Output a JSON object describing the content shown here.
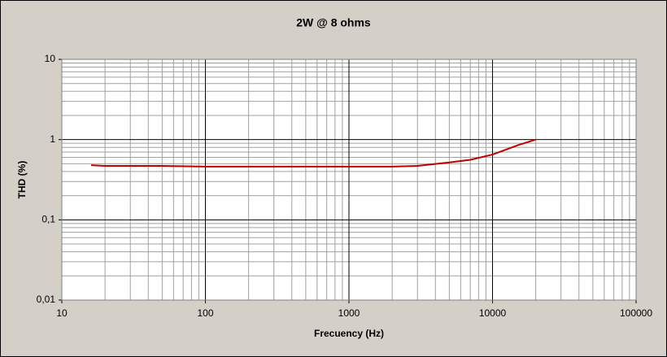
{
  "chart_data": {
    "type": "line",
    "title": "2W @ 8 ohms",
    "x_label": "Frecuency (Hz)",
    "y_label": "THD (%)",
    "x": [
      16,
      20,
      50,
      100,
      200,
      500,
      1000,
      2000,
      3000,
      5000,
      7000,
      10000,
      15000,
      20000
    ],
    "series": [
      {
        "name": "THD",
        "color": "#c00000",
        "values": [
          0.48,
          0.47,
          0.47,
          0.46,
          0.46,
          0.46,
          0.46,
          0.46,
          0.47,
          0.52,
          0.56,
          0.65,
          0.85,
          1.0
        ]
      }
    ],
    "xlim": [
      10,
      100000
    ],
    "ylim": [
      0.01,
      10
    ],
    "xticks": [
      10,
      100,
      1000,
      10000,
      100000
    ],
    "yticks": [
      {
        "value": 0.01,
        "label": "0,01"
      },
      {
        "value": 0.1,
        "label": "0,1"
      },
      1,
      10
    ],
    "xlog": true,
    "ylog": true,
    "grid": true,
    "minor_grid": true
  }
}
